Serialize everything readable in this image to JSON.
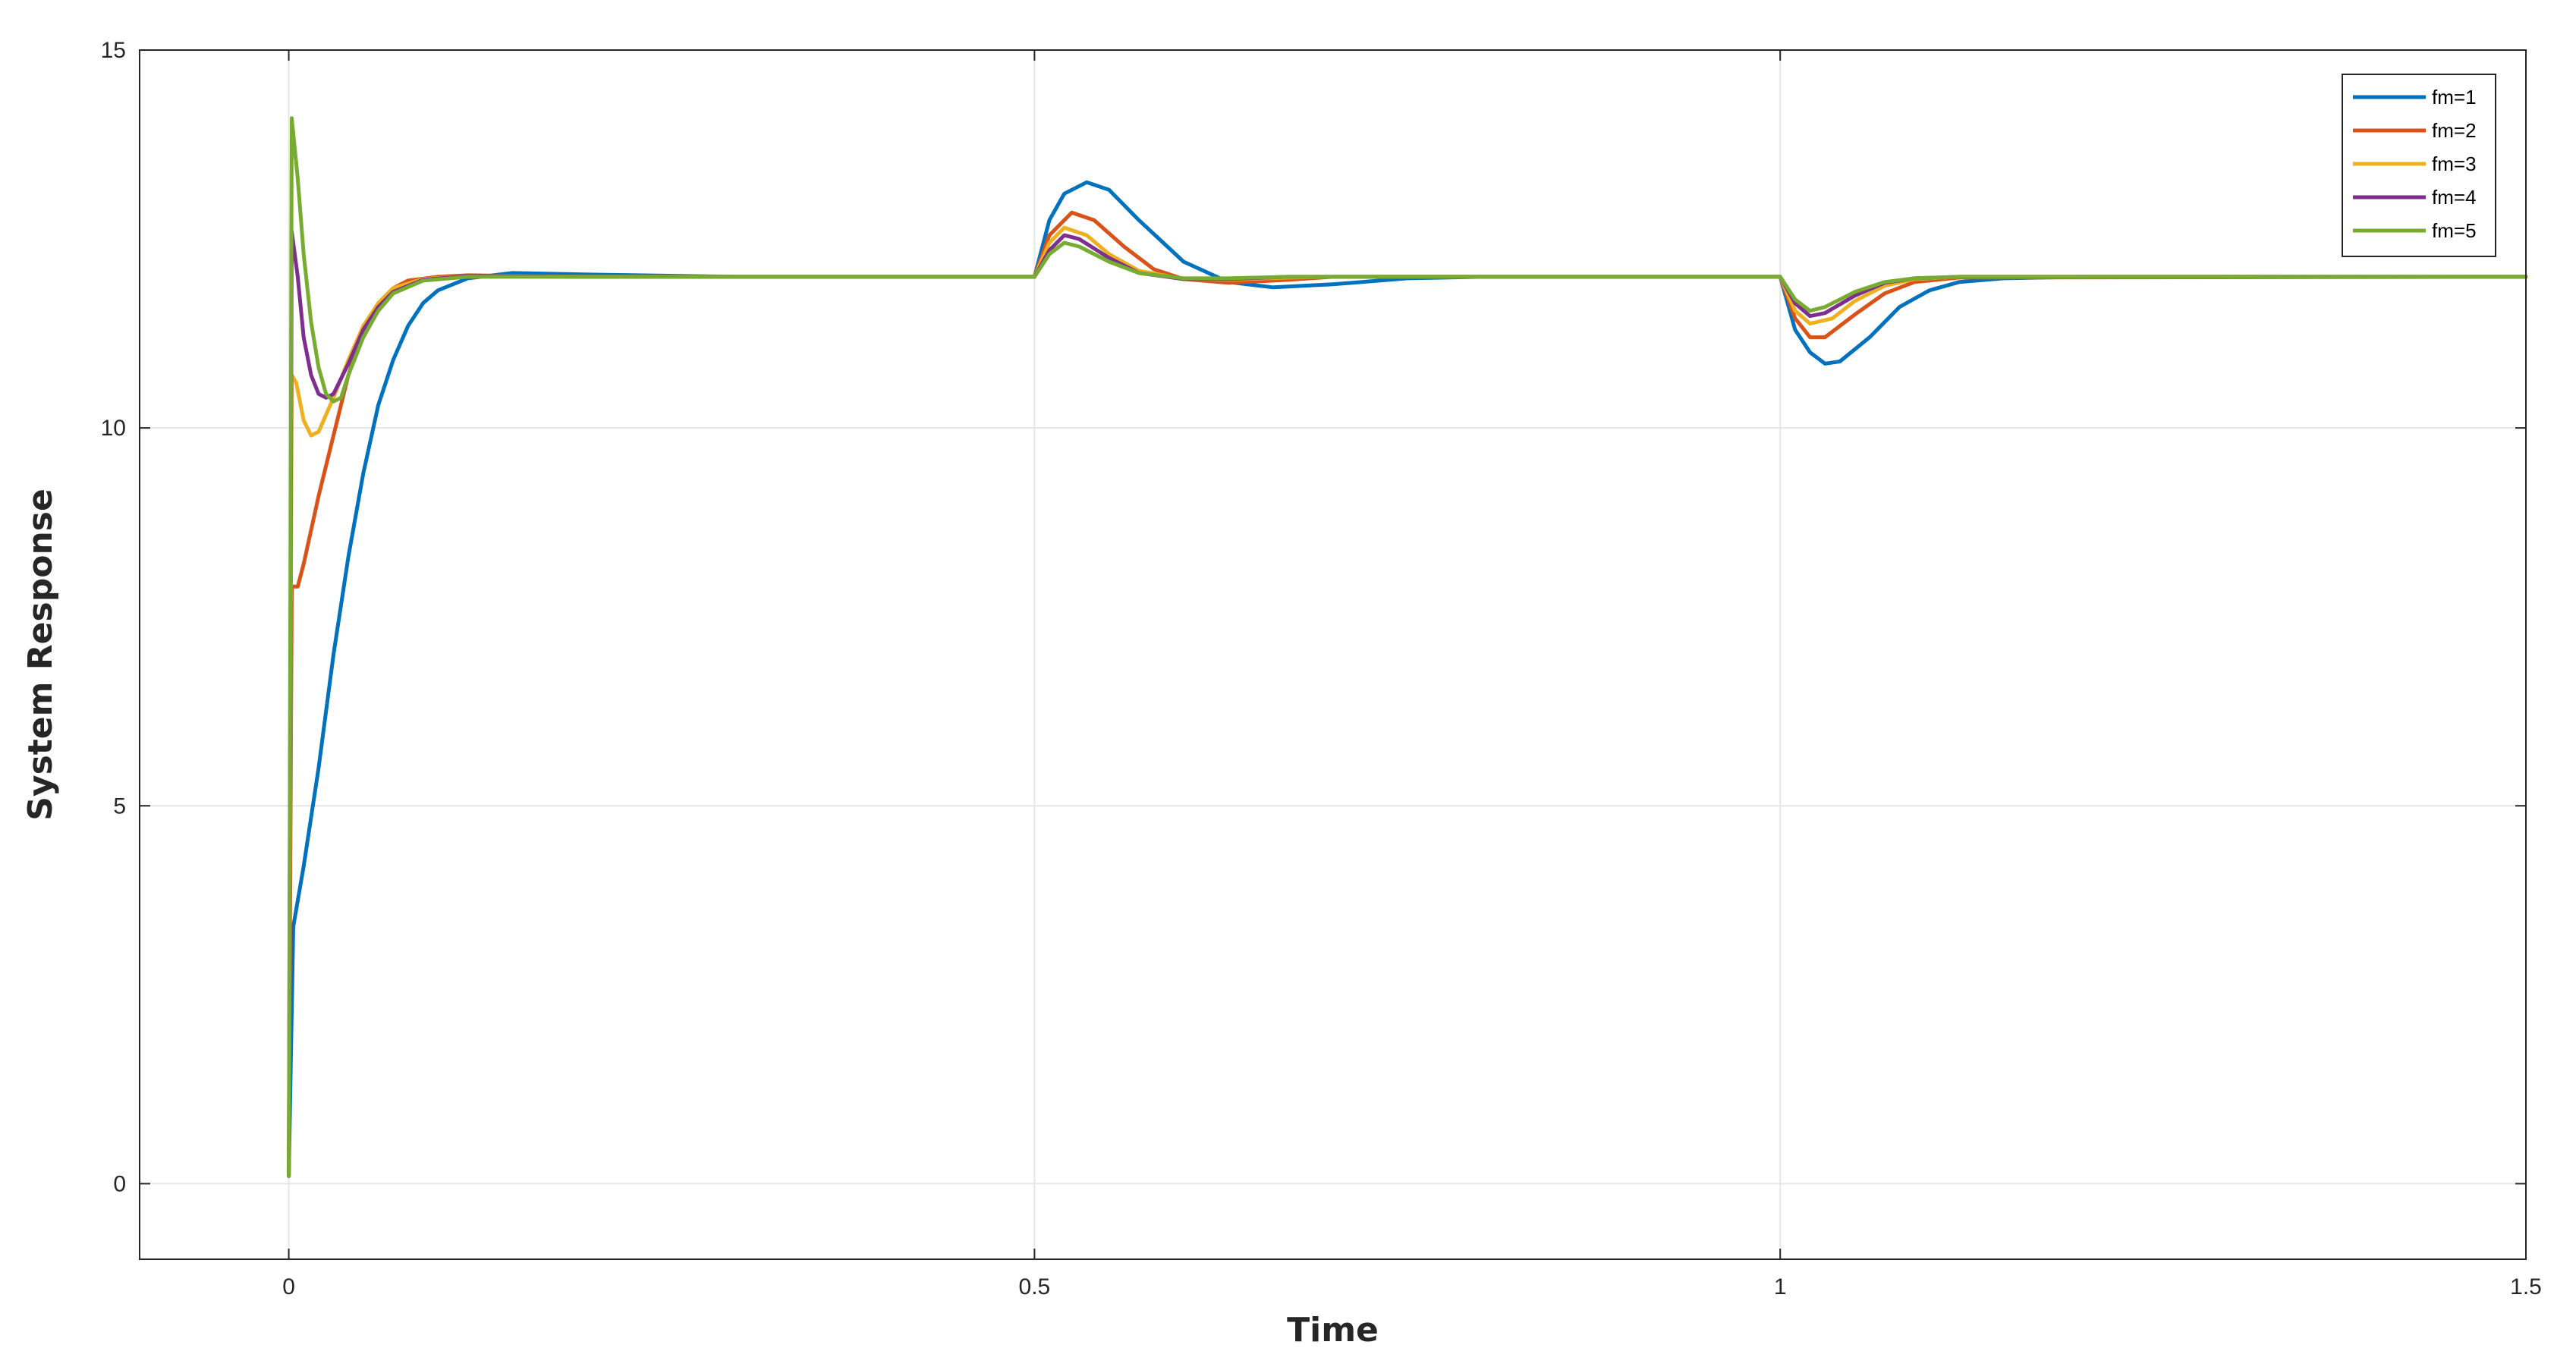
{
  "chart_data": {
    "type": "line",
    "title": "",
    "xlabel": "Time",
    "ylabel": "System Response",
    "xlim": [
      -0.1,
      1.5
    ],
    "ylim": [
      -1,
      15
    ],
    "xticks": [
      0,
      0.5,
      1,
      1.5
    ],
    "xtick_labels": [
      "0",
      "0.5",
      "1",
      "1.5"
    ],
    "yticks": [
      0,
      5,
      10,
      15
    ],
    "ytick_labels": [
      "0",
      "5",
      "10",
      "15"
    ],
    "grid": true,
    "legend_position": "top-right",
    "series": [
      {
        "name": "fm=1",
        "color": "#0072BD",
        "points": [
          [
            0,
            0.1
          ],
          [
            0.003,
            3.4
          ],
          [
            0.01,
            4.2
          ],
          [
            0.02,
            5.5
          ],
          [
            0.03,
            7.0
          ],
          [
            0.04,
            8.3
          ],
          [
            0.05,
            9.4
          ],
          [
            0.06,
            10.3
          ],
          [
            0.07,
            10.9
          ],
          [
            0.08,
            11.35
          ],
          [
            0.09,
            11.65
          ],
          [
            0.1,
            11.82
          ],
          [
            0.12,
            11.98
          ],
          [
            0.15,
            12.05
          ],
          [
            0.2,
            12.03
          ],
          [
            0.3,
            12.0
          ],
          [
            0.5,
            12.0
          ],
          [
            0.51,
            12.75
          ],
          [
            0.52,
            13.1
          ],
          [
            0.535,
            13.25
          ],
          [
            0.55,
            13.15
          ],
          [
            0.57,
            12.75
          ],
          [
            0.6,
            12.2
          ],
          [
            0.63,
            11.93
          ],
          [
            0.66,
            11.86
          ],
          [
            0.7,
            11.9
          ],
          [
            0.75,
            11.98
          ],
          [
            0.8,
            12.0
          ],
          [
            1.0,
            12.0
          ],
          [
            1.01,
            11.3
          ],
          [
            1.02,
            11.0
          ],
          [
            1.03,
            10.85
          ],
          [
            1.04,
            10.88
          ],
          [
            1.06,
            11.2
          ],
          [
            1.08,
            11.6
          ],
          [
            1.1,
            11.82
          ],
          [
            1.12,
            11.93
          ],
          [
            1.15,
            11.98
          ],
          [
            1.2,
            12.0
          ],
          [
            1.5,
            12.0
          ]
        ]
      },
      {
        "name": "fm=2",
        "color": "#D95319",
        "points": [
          [
            0,
            0.1
          ],
          [
            0.002,
            7.9
          ],
          [
            0.006,
            7.9
          ],
          [
            0.01,
            8.2
          ],
          [
            0.02,
            9.1
          ],
          [
            0.03,
            9.9
          ],
          [
            0.04,
            10.7
          ],
          [
            0.05,
            11.3
          ],
          [
            0.06,
            11.65
          ],
          [
            0.07,
            11.85
          ],
          [
            0.08,
            11.95
          ],
          [
            0.1,
            12.0
          ],
          [
            0.12,
            12.02
          ],
          [
            0.2,
            12.0
          ],
          [
            0.5,
            12.0
          ],
          [
            0.51,
            12.55
          ],
          [
            0.525,
            12.85
          ],
          [
            0.54,
            12.75
          ],
          [
            0.56,
            12.4
          ],
          [
            0.58,
            12.1
          ],
          [
            0.6,
            11.97
          ],
          [
            0.63,
            11.92
          ],
          [
            0.67,
            11.96
          ],
          [
            0.7,
            12.0
          ],
          [
            1.0,
            12.0
          ],
          [
            1.01,
            11.45
          ],
          [
            1.02,
            11.2
          ],
          [
            1.03,
            11.2
          ],
          [
            1.05,
            11.5
          ],
          [
            1.07,
            11.78
          ],
          [
            1.09,
            11.93
          ],
          [
            1.12,
            11.99
          ],
          [
            1.5,
            12.0
          ]
        ]
      },
      {
        "name": "fm=3",
        "color": "#EDB120",
        "points": [
          [
            0,
            0.1
          ],
          [
            0.002,
            10.7
          ],
          [
            0.005,
            10.6
          ],
          [
            0.01,
            10.1
          ],
          [
            0.015,
            9.9
          ],
          [
            0.02,
            9.95
          ],
          [
            0.03,
            10.4
          ],
          [
            0.04,
            10.9
          ],
          [
            0.05,
            11.35
          ],
          [
            0.06,
            11.65
          ],
          [
            0.07,
            11.85
          ],
          [
            0.09,
            11.97
          ],
          [
            0.12,
            12.01
          ],
          [
            0.2,
            12.0
          ],
          [
            0.5,
            12.0
          ],
          [
            0.51,
            12.45
          ],
          [
            0.52,
            12.65
          ],
          [
            0.535,
            12.55
          ],
          [
            0.55,
            12.3
          ],
          [
            0.57,
            12.08
          ],
          [
            0.6,
            11.97
          ],
          [
            0.63,
            11.96
          ],
          [
            0.67,
            11.99
          ],
          [
            0.7,
            12.0
          ],
          [
            1.0,
            12.0
          ],
          [
            1.01,
            11.55
          ],
          [
            1.02,
            11.38
          ],
          [
            1.035,
            11.45
          ],
          [
            1.05,
            11.68
          ],
          [
            1.07,
            11.88
          ],
          [
            1.09,
            11.97
          ],
          [
            1.12,
            12.0
          ],
          [
            1.5,
            12.0
          ]
        ]
      },
      {
        "name": "fm=4",
        "color": "#7E2F8E",
        "points": [
          [
            0,
            0.1
          ],
          [
            0.002,
            12.6
          ],
          [
            0.006,
            12.0
          ],
          [
            0.01,
            11.2
          ],
          [
            0.015,
            10.7
          ],
          [
            0.02,
            10.45
          ],
          [
            0.025,
            10.4
          ],
          [
            0.03,
            10.45
          ],
          [
            0.04,
            10.85
          ],
          [
            0.05,
            11.3
          ],
          [
            0.06,
            11.6
          ],
          [
            0.07,
            11.8
          ],
          [
            0.09,
            11.96
          ],
          [
            0.12,
            12.01
          ],
          [
            0.2,
            12.0
          ],
          [
            0.5,
            12.0
          ],
          [
            0.51,
            12.35
          ],
          [
            0.52,
            12.55
          ],
          [
            0.53,
            12.5
          ],
          [
            0.55,
            12.25
          ],
          [
            0.57,
            12.05
          ],
          [
            0.6,
            11.97
          ],
          [
            0.63,
            11.97
          ],
          [
            0.67,
            12.0
          ],
          [
            1.0,
            12.0
          ],
          [
            1.01,
            11.65
          ],
          [
            1.02,
            11.48
          ],
          [
            1.03,
            11.52
          ],
          [
            1.05,
            11.75
          ],
          [
            1.07,
            11.92
          ],
          [
            1.09,
            11.98
          ],
          [
            1.12,
            12.0
          ],
          [
            1.5,
            12.0
          ]
        ]
      },
      {
        "name": "fm=5",
        "color": "#77AC30",
        "points": [
          [
            0,
            0.1
          ],
          [
            0.002,
            14.1
          ],
          [
            0.006,
            13.3
          ],
          [
            0.01,
            12.3
          ],
          [
            0.015,
            11.4
          ],
          [
            0.02,
            10.8
          ],
          [
            0.025,
            10.45
          ],
          [
            0.03,
            10.35
          ],
          [
            0.035,
            10.4
          ],
          [
            0.04,
            10.7
          ],
          [
            0.05,
            11.2
          ],
          [
            0.06,
            11.55
          ],
          [
            0.07,
            11.78
          ],
          [
            0.09,
            11.95
          ],
          [
            0.12,
            12.0
          ],
          [
            0.2,
            12.0
          ],
          [
            0.5,
            12.0
          ],
          [
            0.51,
            12.3
          ],
          [
            0.52,
            12.45
          ],
          [
            0.53,
            12.4
          ],
          [
            0.55,
            12.2
          ],
          [
            0.57,
            12.05
          ],
          [
            0.6,
            11.98
          ],
          [
            0.63,
            11.98
          ],
          [
            0.67,
            12.0
          ],
          [
            1.0,
            12.0
          ],
          [
            1.01,
            11.7
          ],
          [
            1.02,
            11.55
          ],
          [
            1.03,
            11.6
          ],
          [
            1.05,
            11.8
          ],
          [
            1.07,
            11.93
          ],
          [
            1.09,
            11.98
          ],
          [
            1.12,
            12.0
          ],
          [
            1.5,
            12.0
          ]
        ]
      }
    ]
  }
}
